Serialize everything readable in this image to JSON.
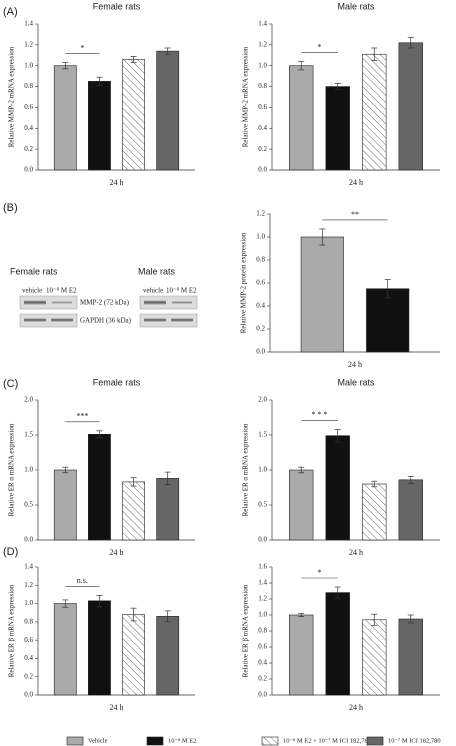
{
  "panel_labels": [
    "(A)",
    "(B)",
    "(C)",
    "(D)"
  ],
  "blot": {
    "female_title": "Female rats",
    "male_title": "Male rats",
    "female_lanes": [
      "vehicle",
      "10⁻⁸ M E2"
    ],
    "male_lanes": [
      "vehicle",
      "10⁻⁸ M E2"
    ],
    "bands": [
      "MMP-2 (72 kDa)",
      "GAPDH (36 kDa)"
    ]
  },
  "legend": {
    "entries": [
      {
        "name": "Vehicle",
        "color": "#aaaaaa"
      },
      {
        "name": "10⁻⁸ M E2",
        "color": "#111111"
      },
      {
        "name": "10⁻⁸ M E2 + 10⁻⁷ M ICI 182,780",
        "color": "hatch"
      },
      {
        "name": "10⁻⁷ M ICI 182,780",
        "color": "#666666"
      }
    ]
  },
  "chart_data": [
    {
      "type": "bar",
      "title": "Female rats",
      "ylabel": "Relative MMP-2 mRNA expression",
      "xlabel": "24 h",
      "values": [
        1.0,
        0.85,
        1.06,
        1.14
      ],
      "errors": [
        0.03,
        0.04,
        0.03,
        0.03
      ],
      "colors": [
        "#aaaaaa",
        "#111111",
        "hatch",
        "#666666"
      ],
      "significance": {
        "from": 0,
        "to": 1,
        "label": "*"
      },
      "ylim": [
        0,
        1.4
      ],
      "yticks": [
        {
          "value": 0,
          "label": "0.0"
        },
        {
          "value": 0.2,
          "label": "0.2"
        },
        {
          "value": 0.4,
          "label": "0.4"
        },
        {
          "value": 0.6,
          "label": "0.6"
        },
        {
          "value": 0.8,
          "label": "0.8"
        },
        {
          "value": 1.0,
          "label": "1.0"
        },
        {
          "value": 1.2,
          "label": "1.2"
        },
        {
          "value": 1.4,
          "label": "1.4"
        }
      ]
    },
    {
      "type": "bar",
      "title": "Male rats",
      "ylabel": "Relative MMP-2 mRNA expression",
      "xlabel": "24 h",
      "values": [
        1.0,
        0.8,
        1.11,
        1.22
      ],
      "errors": [
        0.04,
        0.03,
        0.06,
        0.05
      ],
      "colors": [
        "#aaaaaa",
        "#111111",
        "hatch",
        "#666666"
      ],
      "significance": {
        "from": 0,
        "to": 1,
        "label": "*"
      },
      "ylim": [
        0,
        1.4
      ],
      "yticks": [
        {
          "value": 0,
          "label": "0.0"
        },
        {
          "value": 0.2,
          "label": "0.2"
        },
        {
          "value": 0.4,
          "label": "0.4"
        },
        {
          "value": 0.6,
          "label": "0.6"
        },
        {
          "value": 0.8,
          "label": "0.8"
        },
        {
          "value": 1.0,
          "label": "1.0"
        },
        {
          "value": 1.2,
          "label": "1.2"
        },
        {
          "value": 1.4,
          "label": "1.4"
        }
      ]
    },
    {
      "type": "bar",
      "ylabel": "Relative MMP-2 protein expression",
      "xlabel": "24 h",
      "values": [
        1.0,
        0.55
      ],
      "errors": [
        0.07,
        0.08
      ],
      "colors": [
        "#aaaaaa",
        "#111111"
      ],
      "significance": {
        "from": 0,
        "to": 1,
        "label": "**"
      },
      "ylim": [
        0,
        1.2
      ],
      "yticks": [
        {
          "value": 0,
          "label": "0.0"
        },
        {
          "value": 0.2,
          "label": "0.2"
        },
        {
          "value": 0.4,
          "label": "0.4"
        },
        {
          "value": 0.6,
          "label": "0.6"
        },
        {
          "value": 0.8,
          "label": "0.8"
        },
        {
          "value": 1.0,
          "label": "1.0"
        },
        {
          "value": 1.2,
          "label": "1.2"
        }
      ]
    },
    {
      "type": "bar",
      "title": "Female rats",
      "ylabel": "Relative ER α mRNA expression",
      "xlabel": "24 h",
      "values": [
        1.0,
        1.51,
        0.83,
        0.88
      ],
      "errors": [
        0.04,
        0.05,
        0.06,
        0.09
      ],
      "colors": [
        "#aaaaaa",
        "#111111",
        "hatch",
        "#666666"
      ],
      "significance": {
        "from": 0,
        "to": 1,
        "label": "***"
      },
      "ylim": [
        0,
        2.0
      ],
      "yticks": [
        {
          "value": 0,
          "label": "0.0"
        },
        {
          "value": 0.5,
          "label": "0.5"
        },
        {
          "value": 1.0,
          "label": "1.0"
        },
        {
          "value": 1.5,
          "label": "1.5"
        },
        {
          "value": 2.0,
          "label": "2.0"
        }
      ]
    },
    {
      "type": "bar",
      "title": "Male rats",
      "ylabel": "Relative ER α mRNA expression",
      "xlabel": "24 h",
      "values": [
        1.0,
        1.49,
        0.8,
        0.86
      ],
      "errors": [
        0.04,
        0.09,
        0.04,
        0.05
      ],
      "colors": [
        "#aaaaaa",
        "#111111",
        "hatch",
        "#666666"
      ],
      "significance": {
        "from": 0,
        "to": 1,
        "label": "* * *"
      },
      "ylim": [
        0,
        2.0
      ],
      "yticks": [
        {
          "value": 0,
          "label": "0.0"
        },
        {
          "value": 0.5,
          "label": "0.5"
        },
        {
          "value": 1.0,
          "label": "1.0"
        },
        {
          "value": 1.5,
          "label": "1.5"
        },
        {
          "value": 2.0,
          "label": "2.0"
        }
      ]
    },
    {
      "type": "bar",
      "ylabel": "Relative ER β mRNA expression",
      "xlabel": "24 h",
      "values": [
        1.0,
        1.03,
        0.88,
        0.86
      ],
      "errors": [
        0.04,
        0.06,
        0.07,
        0.06
      ],
      "colors": [
        "#aaaaaa",
        "#111111",
        "hatch",
        "#666666"
      ],
      "significance": {
        "from": 0,
        "to": 1,
        "label": "n.s."
      },
      "ylim": [
        0,
        1.4
      ],
      "yticks": [
        {
          "value": 0,
          "label": "0.0"
        },
        {
          "value": 0.2,
          "label": "0.2"
        },
        {
          "value": 0.4,
          "label": "0.4"
        },
        {
          "value": 0.6,
          "label": "0.6"
        },
        {
          "value": 0.8,
          "label": "0.8"
        },
        {
          "value": 1.0,
          "label": "1.0"
        },
        {
          "value": 1.2,
          "label": "1.2"
        },
        {
          "value": 1.4,
          "label": "1.4"
        }
      ]
    },
    {
      "type": "bar",
      "ylabel": "Relative ER β mRNA expression",
      "xlabel": "24 h",
      "values": [
        1.0,
        1.28,
        0.94,
        0.95
      ],
      "errors": [
        0.02,
        0.07,
        0.07,
        0.05
      ],
      "colors": [
        "#aaaaaa",
        "#111111",
        "hatch",
        "#666666"
      ],
      "significance": {
        "from": 0,
        "to": 1,
        "label": "*"
      },
      "ylim": [
        0,
        1.6
      ],
      "yticks": [
        {
          "value": 0,
          "label": "0.0"
        },
        {
          "value": 0.2,
          "label": "0.2"
        },
        {
          "value": 0.4,
          "label": "0.4"
        },
        {
          "value": 0.6,
          "label": "0.6"
        },
        {
          "value": 0.8,
          "label": "0.8"
        },
        {
          "value": 1.0,
          "label": "1.0"
        },
        {
          "value": 1.2,
          "label": "1.2"
        },
        {
          "value": 1.4,
          "label": "1.4"
        },
        {
          "value": 1.6,
          "label": "1.6"
        }
      ]
    }
  ]
}
